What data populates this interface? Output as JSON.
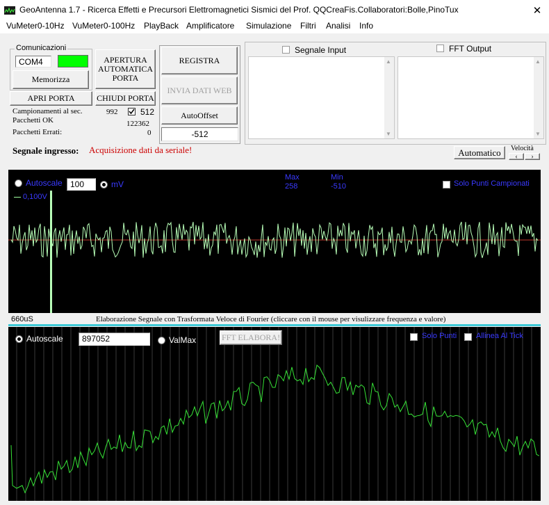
{
  "window": {
    "title": "GeoAntenna 1.7 - Ricerca Effetti e Precursori Elettromagnetici Sismici del Prof. QQCreaFis.Collaboratori:Bolle,PinoTux",
    "close_glyph": "✕"
  },
  "menu": [
    "VuMeter0-10Hz",
    "VuMeter0-100Hz",
    "PlayBack",
    "Amplificatore",
    "Simulazione",
    "Filtri",
    "Analisi",
    "Info"
  ],
  "comms": {
    "group_label": "Comunicazioni",
    "port": "COM4",
    "status_color": "#00ff00",
    "memorizza": "Memorizza",
    "apertura_1": "APERTURA",
    "apertura_2": "AUTOMATICA",
    "apertura_3": "PORTA",
    "apri_porta": "APRI PORTA",
    "chiudi_porta": "CHIUDI PORTA",
    "campionamenti_label": "Campionamenti al sec.",
    "campionamenti_value": "992",
    "samples_check_value": "512",
    "pacchetti_ok_label": "Pacchetti OK",
    "pacchetti_ok_value": "122362",
    "pacchetti_errati_label": "Pacchetti Errati:",
    "pacchetti_errati_value": "0"
  },
  "actions": {
    "registra": "REGISTRA",
    "invia": "INVIA DATI WEB",
    "autooffset": "AutoOffset",
    "offset_value": "-512"
  },
  "outputs": {
    "segnale_input": "Segnale Input",
    "fft_output": "FFT Output"
  },
  "status": {
    "label": "Segnale ingresso:",
    "message": "Acquisizione dati da seriale!",
    "message_color": "#cc0000",
    "automatico": "Automatico",
    "velocita": "Velocità",
    "vel_left": "‹",
    "vel_right": "›"
  },
  "scope": {
    "autoscale": "Autoscale",
    "scale_value": "100",
    "unit": "mV",
    "max_label": "Max",
    "max_value": "258",
    "min_label": "Min",
    "min_value": "-510",
    "solo_punti": "Solo Punti Campionati",
    "scale_marker": "0,100V",
    "time_label": "660uS",
    "caption": "Elaborazione Segnale con Trasformata Veloce di Fourier (cliccare con il mouse per visulizzare frequenza e valore)"
  },
  "fft": {
    "autoscale": "Autoscale",
    "value": "897052",
    "valmax": "ValMax",
    "elabora": "FFT ELABORA!",
    "solo_punti": "Solo Punti",
    "allinea": "Allinea Al Tick"
  }
}
